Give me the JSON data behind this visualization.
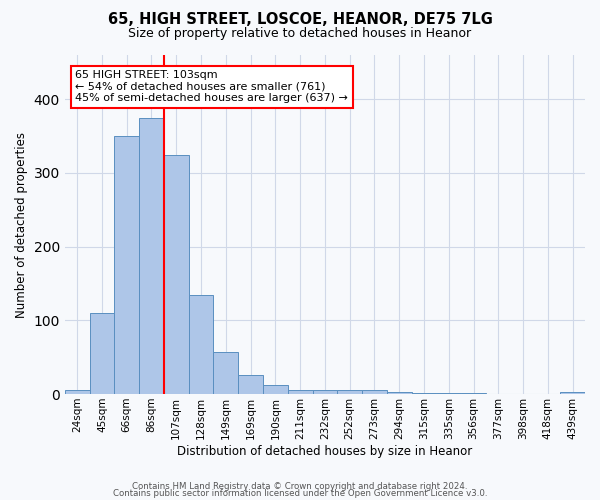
{
  "title1": "65, HIGH STREET, LOSCOE, HEANOR, DE75 7LG",
  "title2": "Size of property relative to detached houses in Heanor",
  "xlabel": "Distribution of detached houses by size in Heanor",
  "ylabel": "Number of detached properties",
  "categories": [
    "24sqm",
    "45sqm",
    "66sqm",
    "86sqm",
    "107sqm",
    "128sqm",
    "149sqm",
    "169sqm",
    "190sqm",
    "211sqm",
    "232sqm",
    "252sqm",
    "273sqm",
    "294sqm",
    "315sqm",
    "335sqm",
    "356sqm",
    "377sqm",
    "398sqm",
    "418sqm",
    "439sqm"
  ],
  "values": [
    5,
    110,
    350,
    375,
    325,
    135,
    57,
    26,
    12,
    6,
    6,
    6,
    5,
    3,
    1,
    1,
    1,
    0,
    0,
    0,
    3
  ],
  "bar_color": "#aec6e8",
  "bar_edge_color": "#5a8fc0",
  "grid_color": "#d0d8e8",
  "background_color": "#f7f9fc",
  "red_line_x": 3.5,
  "annotation_text": "65 HIGH STREET: 103sqm\n← 54% of detached houses are smaller (761)\n45% of semi-detached houses are larger (637) →",
  "annotation_box_color": "white",
  "annotation_box_edge_color": "red",
  "footer1": "Contains HM Land Registry data © Crown copyright and database right 2024.",
  "footer2": "Contains public sector information licensed under the Open Government Licence v3.0.",
  "ylim": [
    0,
    460
  ]
}
